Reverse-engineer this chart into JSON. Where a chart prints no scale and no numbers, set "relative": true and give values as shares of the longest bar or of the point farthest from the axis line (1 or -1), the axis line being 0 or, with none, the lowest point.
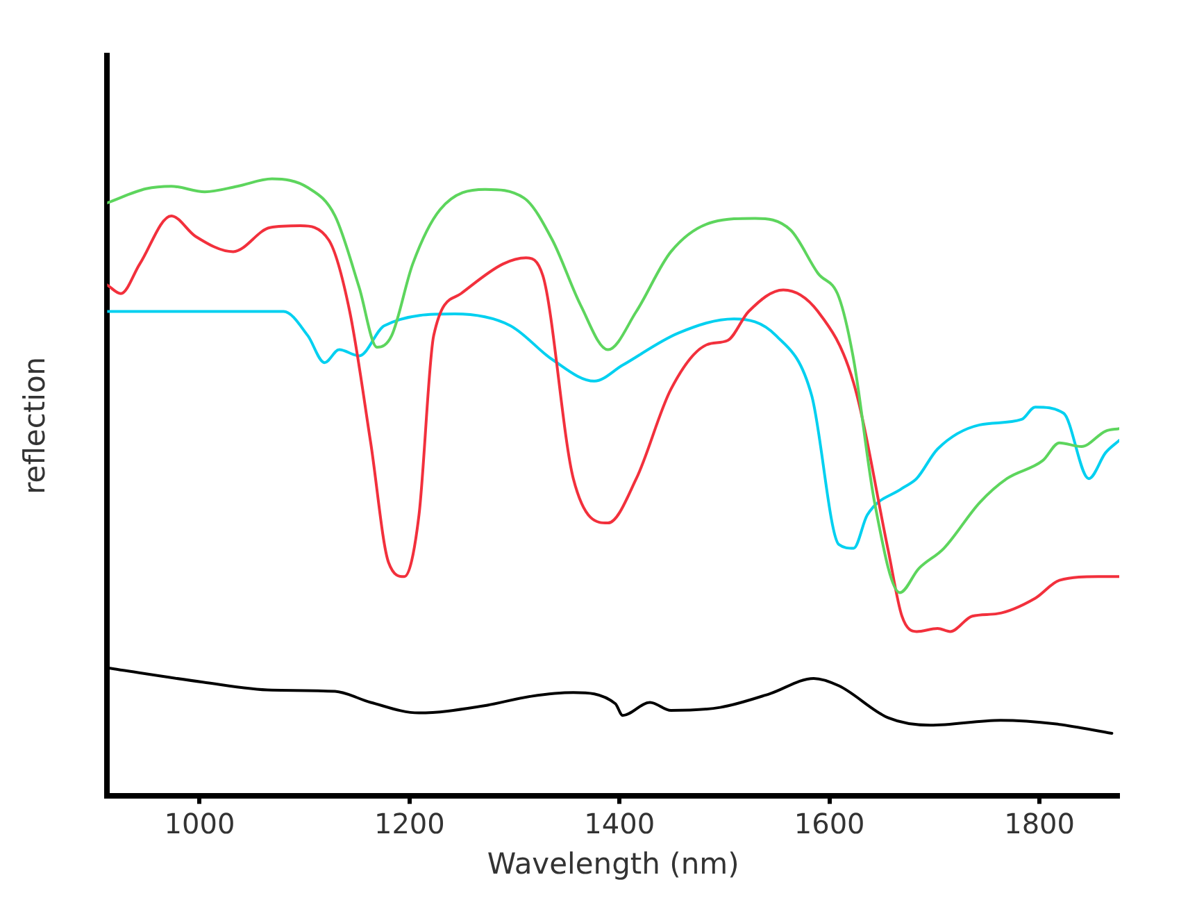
{
  "chart_data": {
    "type": "line",
    "xlabel": "Wavelength (nm)",
    "ylabel": "reflection",
    "relative": true,
    "xlim": [
      912,
      1876
    ],
    "xticks": [
      1000,
      1200,
      1400,
      1600,
      1800
    ],
    "grid": false,
    "legend": false,
    "marker": "none",
    "line_style": "solid",
    "series": [
      {
        "color": "#5dd55d",
        "x": [
          912,
          949,
          973,
          1005,
          1036,
          1069,
          1103,
          1129,
          1152,
          1169,
          1183,
          1203,
          1229,
          1272,
          1309,
          1336,
          1363,
          1389,
          1416,
          1449,
          1489,
          1529,
          1563,
          1589,
          1609,
          1623,
          1643,
          1667,
          1685,
          1709,
          1743,
          1769,
          1803,
          1819,
          1840,
          1863,
          1876
        ],
        "values": [
          0.961,
          0.984,
          0.988,
          0.979,
          0.988,
          1.0,
          0.986,
          0.94,
          0.824,
          0.727,
          0.746,
          0.862,
          0.95,
          0.983,
          0.969,
          0.901,
          0.795,
          0.723,
          0.785,
          0.882,
          0.93,
          0.936,
          0.917,
          0.847,
          0.808,
          0.707,
          0.475,
          0.329,
          0.368,
          0.401,
          0.475,
          0.514,
          0.543,
          0.572,
          0.566,
          0.591,
          0.595
        ]
      },
      {
        "color": "#f2303c",
        "x": [
          912,
          925,
          943,
          973,
          996,
          1032,
          1067,
          1096,
          1123,
          1143,
          1163,
          1180,
          1195,
          1209,
          1223,
          1249,
          1289,
          1311,
          1327,
          1356,
          1389,
          1416,
          1449,
          1483,
          1503,
          1523,
          1556,
          1589,
          1623,
          1656,
          1669,
          1683,
          1703,
          1715,
          1736,
          1760,
          1796,
          1819,
          1856,
          1876
        ],
        "values": [
          0.828,
          0.814,
          0.862,
          0.94,
          0.907,
          0.882,
          0.921,
          0.924,
          0.901,
          0.785,
          0.572,
          0.378,
          0.355,
          0.455,
          0.746,
          0.814,
          0.862,
          0.872,
          0.843,
          0.514,
          0.442,
          0.514,
          0.659,
          0.731,
          0.738,
          0.785,
          0.82,
          0.785,
          0.669,
          0.397,
          0.291,
          0.266,
          0.271,
          0.266,
          0.291,
          0.295,
          0.32,
          0.349,
          0.355,
          0.355
        ]
      },
      {
        "color": "#00d0f0",
        "x": [
          912,
          1080,
          1103,
          1119,
          1133,
          1152,
          1176,
          1243,
          1296,
          1336,
          1376,
          1403,
          1456,
          1509,
          1549,
          1583,
          1609,
          1623,
          1636,
          1669,
          1683,
          1703,
          1743,
          1783,
          1796,
          1823,
          1847,
          1863,
          1876
        ],
        "values": [
          0.785,
          0.785,
          0.746,
          0.702,
          0.723,
          0.713,
          0.762,
          0.781,
          0.762,
          0.707,
          0.672,
          0.698,
          0.75,
          0.773,
          0.746,
          0.649,
          0.407,
          0.401,
          0.455,
          0.498,
          0.514,
          0.562,
          0.601,
          0.61,
          0.63,
          0.62,
          0.514,
          0.556,
          0.576
        ]
      },
      {
        "color": "#000000",
        "x": [
          912,
          1003,
          1069,
          1129,
          1163,
          1209,
          1269,
          1316,
          1356,
          1396,
          1403,
          1429,
          1449,
          1496,
          1543,
          1585,
          1609,
          1656,
          1696,
          1763,
          1816,
          1869
        ],
        "values": [
          0.207,
          0.184,
          0.171,
          0.169,
          0.151,
          0.134,
          0.145,
          0.161,
          0.167,
          0.149,
          0.13,
          0.151,
          0.138,
          0.143,
          0.165,
          0.19,
          0.178,
          0.126,
          0.114,
          0.122,
          0.116,
          0.101
        ]
      }
    ]
  }
}
